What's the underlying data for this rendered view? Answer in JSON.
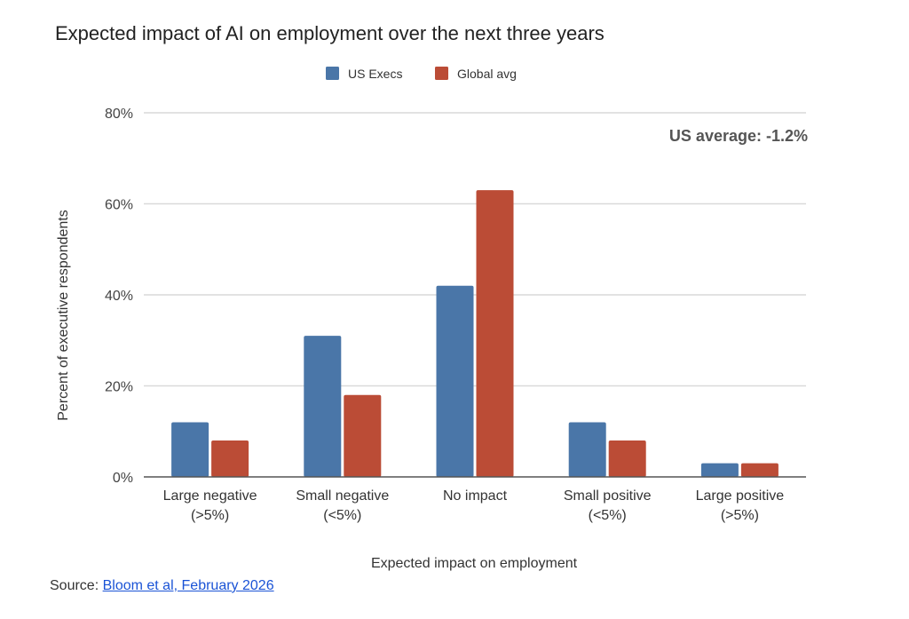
{
  "chart_data": {
    "type": "bar",
    "title": "Expected impact of AI on employment over the next three years",
    "xlabel": "Expected impact on employment",
    "ylabel": "Percent of executive respondents",
    "categories": [
      [
        "Large negative",
        "(>5%)"
      ],
      [
        "Small negative",
        "(<5%)"
      ],
      [
        "No impact"
      ],
      [
        "Small positive",
        "(<5%)"
      ],
      [
        "Large positive",
        "(>5%)"
      ]
    ],
    "series": [
      {
        "name": "US Execs",
        "color": "#4a76a8",
        "values": [
          12,
          31,
          42,
          12,
          3
        ]
      },
      {
        "name": "Global avg",
        "color": "#bb4c36",
        "values": [
          8,
          18,
          63,
          8,
          3
        ]
      }
    ],
    "ylim": [
      0,
      80
    ],
    "yticks": [
      0,
      20,
      40,
      60,
      80
    ],
    "ytick_labels": [
      "0%",
      "20%",
      "40%",
      "60%",
      "80%"
    ],
    "grid": true,
    "legend_position": "top-center",
    "annotation": "US average: -1.2%"
  },
  "source": {
    "prefix": "Source: ",
    "link_text": "Bloom et al, February 2026"
  }
}
